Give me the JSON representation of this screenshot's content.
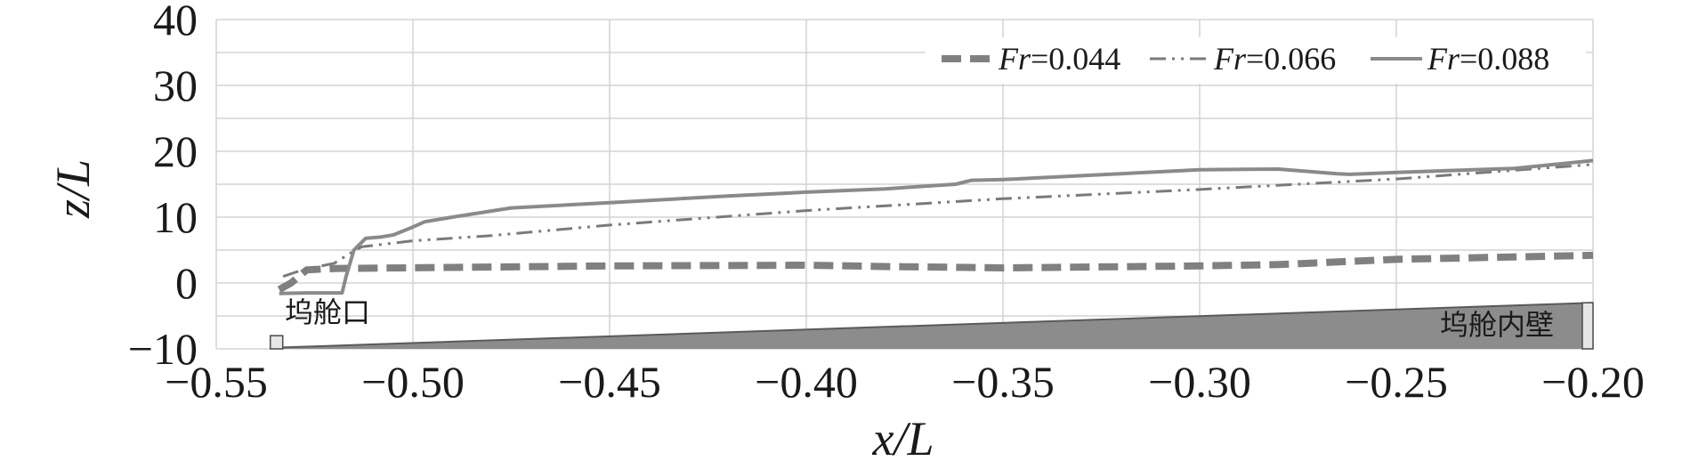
{
  "chart_data": {
    "type": "line",
    "xlabel": "x/L",
    "ylabel": "z/L",
    "xlim": [
      -0.55,
      -0.2
    ],
    "ylim": [
      -10,
      40
    ],
    "x_ticks": [
      "−0.55",
      "−0.50",
      "−0.45",
      "−0.40",
      "−0.35",
      "−0.30",
      "−0.25",
      "−0.20"
    ],
    "y_ticks": [
      "−10",
      "0",
      "10",
      "20",
      "30",
      "40"
    ],
    "grid": true,
    "legend_position": "top-right",
    "series": [
      {
        "name": "Fr=0.044",
        "legend_prefix": "Fr",
        "legend_value": "=0.044",
        "style": "dashed",
        "color": "#808080",
        "x": [
          -0.534,
          -0.531,
          -0.529,
          -0.527,
          -0.52,
          -0.45,
          -0.4,
          -0.38,
          -0.35,
          -0.3,
          -0.28,
          -0.25,
          -0.2
        ],
        "y": [
          -1,
          0,
          1,
          2,
          2.2,
          2.6,
          2.7,
          2.5,
          2.3,
          2.6,
          2.8,
          3.6,
          4.2
        ]
      },
      {
        "name": "Fr=0.066",
        "legend_prefix": "Fr",
        "legend_value": "=0.066",
        "style": "dash-dot-dot",
        "color": "#7a7a7a",
        "x": [
          -0.533,
          -0.528,
          -0.52,
          -0.516,
          -0.513,
          -0.5,
          -0.48,
          -0.45,
          -0.4,
          -0.35,
          -0.3,
          -0.25,
          -0.2
        ],
        "y": [
          1,
          2,
          3,
          4.5,
          5.5,
          6.4,
          7.2,
          8.8,
          11,
          12.8,
          14.2,
          15.8,
          18
        ]
      },
      {
        "name": "Fr=0.088",
        "legend_prefix": "Fr",
        "legend_value": "=0.088",
        "style": "solid",
        "color": "#8a8a8a",
        "x": [
          -0.534,
          -0.527,
          -0.522,
          -0.518,
          -0.517,
          -0.515,
          -0.512,
          -0.508,
          -0.505,
          -0.5,
          -0.497,
          -0.49,
          -0.475,
          -0.45,
          -0.42,
          -0.4,
          -0.38,
          -0.362,
          -0.358,
          -0.35,
          -0.3,
          -0.28,
          -0.265,
          -0.262,
          -0.25,
          -0.22,
          -0.2
        ],
        "y": [
          -1.6,
          -1.5,
          -1.5,
          -1.5,
          1,
          5,
          6.8,
          7,
          7.3,
          8.5,
          9.3,
          10,
          11.4,
          12.2,
          13.2,
          13.8,
          14.3,
          15,
          15.6,
          15.7,
          17.2,
          17.3,
          16.6,
          16.5,
          16.8,
          17.4,
          18.6
        ]
      }
    ],
    "floor_profile": {
      "x": [
        -0.534,
        -0.2
      ],
      "y": [
        -9.8,
        -3
      ]
    },
    "annotations": {
      "dock_entrance": "坞舱口",
      "dock_inner_wall": "坞舱内壁"
    }
  }
}
